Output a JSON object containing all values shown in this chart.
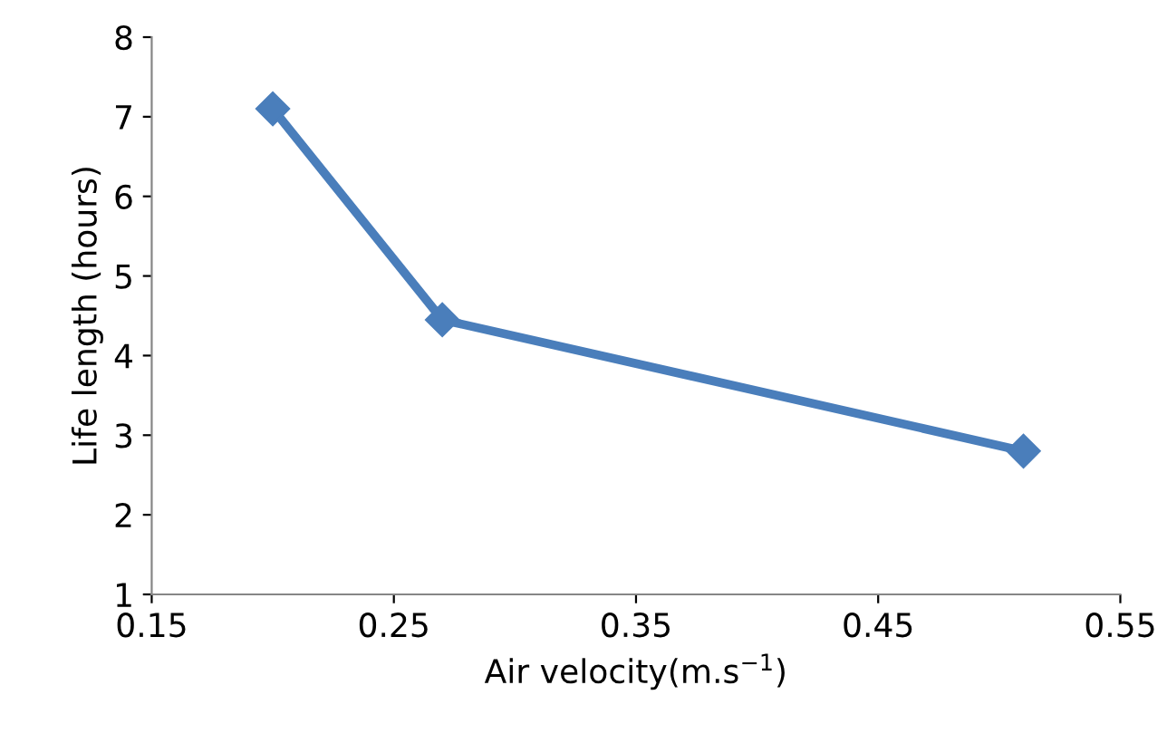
{
  "chart_data": {
    "type": "line",
    "xlabel": "Air velocity(m.s$^{−1}$)",
    "ylabel": "Life length (hours)",
    "x": [
      0.2,
      0.27,
      0.51
    ],
    "series": [
      {
        "color": "#4a7ebb",
        "values": [
          7.1,
          4.45,
          2.8
        ]
      }
    ],
    "xlim": [
      0.15,
      0.55
    ],
    "xticks": [
      0.15,
      0.25,
      0.35,
      0.45,
      0.55
    ],
    "ylim": [
      1,
      8
    ],
    "yticks": [
      1,
      2,
      3,
      4,
      5,
      6,
      7,
      8
    ],
    "marker": "diamond",
    "line_style": "solid",
    "grid": false,
    "legend": false
  }
}
